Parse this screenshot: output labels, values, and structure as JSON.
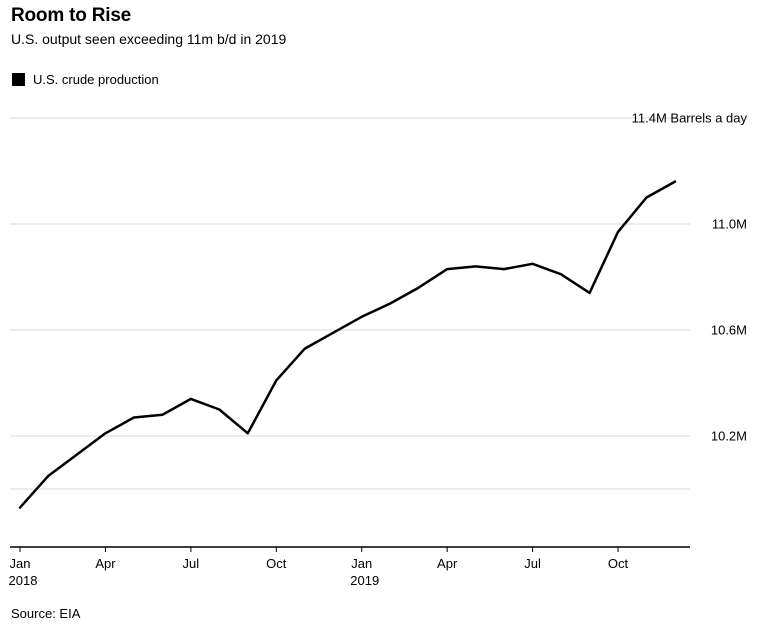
{
  "header": {
    "title": "Room to Rise",
    "subtitle": "U.S. output seen exceeding 11m b/d in 2019"
  },
  "legend": {
    "label": "U.S. crude production",
    "swatch_color": "#000000"
  },
  "footer": {
    "source": "Source: EIA"
  },
  "chart_data": {
    "type": "line",
    "title": "Room to Rise",
    "subtitle": "U.S. output seen exceeding 11m b/d in 2019",
    "ylabel": "Barrels a day",
    "unit": "million barrels per day",
    "legend_position": "top-left",
    "grid": true,
    "line_color": "#000000",
    "grid_color": "#d9d9d9",
    "axis_color": "#000000",
    "ylim": [
      9.78,
      11.45
    ],
    "x": [
      "Jan 2018",
      "Feb 2018",
      "Mar 2018",
      "Apr 2018",
      "May 2018",
      "Jun 2018",
      "Jul 2018",
      "Aug 2018",
      "Sep 2018",
      "Oct 2018",
      "Nov 2018",
      "Dec 2018",
      "Jan 2019",
      "Feb 2019",
      "Mar 2019",
      "Apr 2019",
      "May 2019",
      "Jun 2019",
      "Jul 2019",
      "Aug 2019",
      "Sep 2019",
      "Oct 2019",
      "Nov 2019",
      "Dec 2019"
    ],
    "series": [
      {
        "name": "U.S. crude production",
        "values": [
          9.93,
          10.05,
          10.13,
          10.21,
          10.27,
          10.28,
          10.34,
          10.3,
          10.21,
          10.41,
          10.53,
          10.59,
          10.65,
          10.7,
          10.76,
          10.83,
          10.84,
          10.83,
          10.85,
          10.81,
          10.74,
          10.97,
          11.1,
          11.16
        ]
      }
    ],
    "yticks": [
      {
        "value": 11.4,
        "label": "11.4M Barrels a day"
      },
      {
        "value": 11.0,
        "label": "11.0M"
      },
      {
        "value": 10.6,
        "label": "10.6M"
      },
      {
        "value": 10.2,
        "label": "10.2M"
      },
      {
        "value": 10.0,
        "label": ""
      }
    ],
    "xticks": [
      {
        "index": 0,
        "label": "Jan",
        "year": "2018"
      },
      {
        "index": 3,
        "label": "Apr",
        "year": ""
      },
      {
        "index": 6,
        "label": "Jul",
        "year": ""
      },
      {
        "index": 9,
        "label": "Oct",
        "year": ""
      },
      {
        "index": 12,
        "label": "Jan",
        "year": "2019"
      },
      {
        "index": 15,
        "label": "Apr",
        "year": ""
      },
      {
        "index": 18,
        "label": "Jul",
        "year": ""
      },
      {
        "index": 21,
        "label": "Oct",
        "year": ""
      }
    ]
  }
}
